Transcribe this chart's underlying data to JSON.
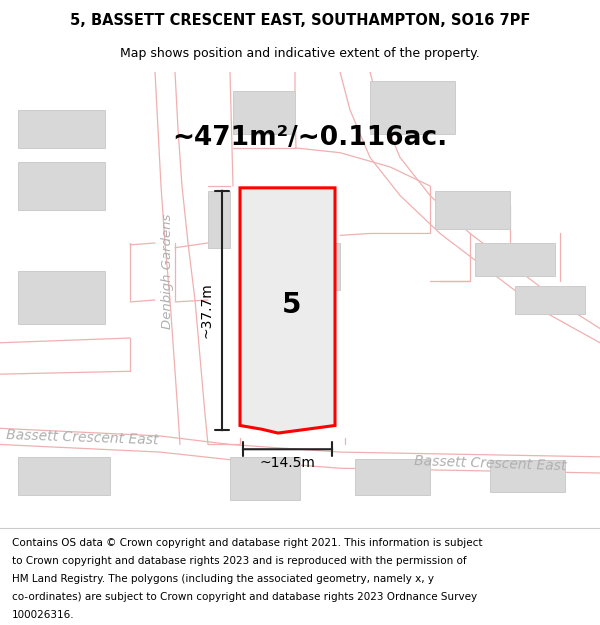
{
  "title_line1": "5, BASSETT CRESCENT EAST, SOUTHAMPTON, SO16 7PF",
  "title_line2": "Map shows position and indicative extent of the property.",
  "footer_lines": [
    "Contains OS data © Crown copyright and database right 2021. This information is subject",
    "to Crown copyright and database rights 2023 and is reproduced with the permission of",
    "HM Land Registry. The polygons (including the associated geometry, namely x, y",
    "co-ordinates) are subject to Crown copyright and database rights 2023 Ordnance Survey",
    "100026316."
  ],
  "area_label": "~471m²/~0.116ac.",
  "property_number": "5",
  "dim_width": "~14.5m",
  "dim_height": "~37.7m",
  "road_label_left": "Bassett Crescent East",
  "road_label_right": "Bassett Crescent East",
  "street_label": "Denbigh Gardens",
  "map_bg": "#ffffff",
  "road_line_color": "#f0b0b0",
  "building_color": "#d8d8d8",
  "building_edge": "#cccccc",
  "property_fill": "#ececec",
  "property_outline": "#ff0000",
  "dim_color": "#222222",
  "road_text_color": "#b0b0b0",
  "title_fontsize": 10.5,
  "subtitle_fontsize": 9,
  "footer_fontsize": 7.5,
  "area_fontsize": 19,
  "number_fontsize": 20,
  "road_fontsize": 10,
  "street_fontsize": 9.5,
  "dim_fontsize": 10
}
